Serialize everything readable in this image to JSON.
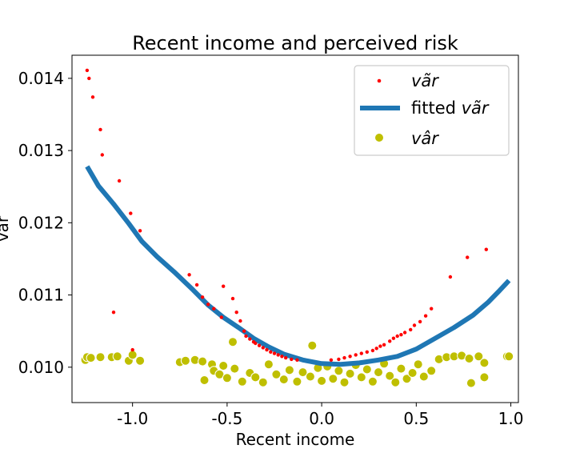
{
  "chart_data": {
    "type": "scatter",
    "title": "Recent income and perceived risk",
    "xlabel": "Recent income",
    "ylabel": "var",
    "xlim": [
      -1.32,
      1.04
    ],
    "ylim": [
      0.00951,
      0.01432
    ],
    "xticks": [
      -1.0,
      -0.5,
      0.0,
      0.5,
      1.0
    ],
    "xtick_labels": [
      "-1.0",
      "-0.5",
      "0.0",
      "0.5",
      "1.0"
    ],
    "yticks": [
      0.01,
      0.011,
      0.012,
      0.013,
      0.014
    ],
    "ytick_labels": [
      "0.010",
      "0.011",
      "0.012",
      "0.013",
      "0.014"
    ],
    "grid": false,
    "legend_position": "top-right",
    "series": [
      {
        "name": "vãr",
        "kind": "scatter-small",
        "color": "#ff0000",
        "points": [
          [
            -1.24,
            0.01411
          ],
          [
            -1.23,
            0.014
          ],
          [
            -1.21,
            0.01374
          ],
          [
            -1.17,
            0.01329
          ],
          [
            -1.16,
            0.01294
          ],
          [
            -1.07,
            0.01258
          ],
          [
            -1.01,
            0.01213
          ],
          [
            -0.96,
            0.01189
          ],
          [
            -1.1,
            0.01076
          ],
          [
            -1.0,
            0.01024
          ],
          [
            -0.7,
            0.01128
          ],
          [
            -0.66,
            0.01114
          ],
          [
            -0.63,
            0.01097
          ],
          [
            -0.6,
            0.01087
          ],
          [
            -0.57,
            0.01081
          ],
          [
            -0.53,
            0.01069
          ],
          [
            -0.52,
            0.01112
          ],
          [
            -0.47,
            0.01095
          ],
          [
            -0.45,
            0.01076
          ],
          [
            -0.43,
            0.01064
          ],
          [
            -0.41,
            0.0105
          ],
          [
            -0.4,
            0.01043
          ],
          [
            -0.38,
            0.01039
          ],
          [
            -0.36,
            0.01035
          ],
          [
            -0.35,
            0.01033
          ],
          [
            -0.33,
            0.0103
          ],
          [
            -0.31,
            0.01027
          ],
          [
            -0.29,
            0.01024
          ],
          [
            -0.27,
            0.01021
          ],
          [
            -0.25,
            0.01019
          ],
          [
            -0.23,
            0.01017
          ],
          [
            -0.21,
            0.01015
          ],
          [
            -0.19,
            0.01013
          ],
          [
            -0.16,
            0.01011
          ],
          [
            -0.13,
            0.0101
          ],
          [
            0.05,
            0.0101
          ],
          [
            0.09,
            0.01011
          ],
          [
            0.12,
            0.01013
          ],
          [
            0.15,
            0.01015
          ],
          [
            0.18,
            0.01017
          ],
          [
            0.21,
            0.01019
          ],
          [
            0.24,
            0.01021
          ],
          [
            0.27,
            0.01023
          ],
          [
            0.29,
            0.01026
          ],
          [
            0.31,
            0.01029
          ],
          [
            0.33,
            0.01031
          ],
          [
            0.36,
            0.01036
          ],
          [
            0.38,
            0.0104
          ],
          [
            0.4,
            0.01043
          ],
          [
            0.42,
            0.01045
          ],
          [
            0.44,
            0.01048
          ],
          [
            0.47,
            0.01052
          ],
          [
            0.49,
            0.01058
          ],
          [
            0.52,
            0.01063
          ],
          [
            0.55,
            0.01071
          ],
          [
            0.58,
            0.01081
          ],
          [
            0.68,
            0.01125
          ],
          [
            0.77,
            0.01152
          ],
          [
            0.87,
            0.01163
          ]
        ]
      },
      {
        "name": "fitted vãr",
        "kind": "line",
        "color": "#1f77b4",
        "points": [
          [
            -1.24,
            0.01278
          ],
          [
            -1.18,
            0.01251
          ],
          [
            -1.1,
            0.01226
          ],
          [
            -1.02,
            0.01199
          ],
          [
            -0.95,
            0.01174
          ],
          [
            -0.87,
            0.01153
          ],
          [
            -0.78,
            0.01132
          ],
          [
            -0.68,
            0.01107
          ],
          [
            -0.6,
            0.01086
          ],
          [
            -0.52,
            0.01069
          ],
          [
            -0.44,
            0.01055
          ],
          [
            -0.36,
            0.0104
          ],
          [
            -0.28,
            0.01028
          ],
          [
            -0.2,
            0.01018
          ],
          [
            -0.1,
            0.0101
          ],
          [
            0.0,
            0.01005
          ],
          [
            0.1,
            0.01004
          ],
          [
            0.2,
            0.01006
          ],
          [
            0.3,
            0.0101
          ],
          [
            0.4,
            0.01015
          ],
          [
            0.5,
            0.01025
          ],
          [
            0.6,
            0.0104
          ],
          [
            0.7,
            0.01055
          ],
          [
            0.8,
            0.01072
          ],
          [
            0.88,
            0.0109
          ],
          [
            0.94,
            0.01106
          ],
          [
            0.99,
            0.0112
          ]
        ]
      },
      {
        "name": "vâr",
        "kind": "scatter-large",
        "color": "#bfbf00",
        "points": [
          [
            -1.25,
            0.0101
          ],
          [
            -1.24,
            0.01014
          ],
          [
            -1.22,
            0.01013
          ],
          [
            -1.17,
            0.01014
          ],
          [
            -1.11,
            0.01014
          ],
          [
            -1.08,
            0.01015
          ],
          [
            -1.02,
            0.01009
          ],
          [
            -1.0,
            0.01017
          ],
          [
            -0.96,
            0.01009
          ],
          [
            -0.75,
            0.01007
          ],
          [
            -0.72,
            0.01009
          ],
          [
            -0.67,
            0.0101
          ],
          [
            -0.63,
            0.01008
          ],
          [
            -0.58,
            0.01004
          ],
          [
            -0.52,
            0.01002
          ],
          [
            -0.47,
            0.01035
          ],
          [
            -0.62,
            0.00982
          ],
          [
            -0.57,
            0.00995
          ],
          [
            -0.54,
            0.0099
          ],
          [
            -0.5,
            0.00985
          ],
          [
            -0.46,
            0.00998
          ],
          [
            -0.42,
            0.0098
          ],
          [
            -0.38,
            0.00992
          ],
          [
            -0.35,
            0.00986
          ],
          [
            -0.31,
            0.00979
          ],
          [
            -0.28,
            0.01004
          ],
          [
            -0.24,
            0.0099
          ],
          [
            -0.2,
            0.00983
          ],
          [
            -0.17,
            0.00996
          ],
          [
            -0.13,
            0.0098
          ],
          [
            -0.1,
            0.00993
          ],
          [
            -0.06,
            0.00987
          ],
          [
            -0.02,
            0.00999
          ],
          [
            0.0,
            0.00981
          ],
          [
            0.03,
            0.01001
          ],
          [
            0.06,
            0.00984
          ],
          [
            0.09,
            0.00995
          ],
          [
            0.12,
            0.00979
          ],
          [
            0.15,
            0.00991
          ],
          [
            0.18,
            0.01003
          ],
          [
            0.21,
            0.00986
          ],
          [
            0.24,
            0.00997
          ],
          [
            0.27,
            0.0098
          ],
          [
            0.3,
            0.00993
          ],
          [
            0.33,
            0.01005
          ],
          [
            0.36,
            0.00988
          ],
          [
            0.39,
            0.00979
          ],
          [
            0.42,
            0.00998
          ],
          [
            0.45,
            0.00984
          ],
          [
            0.48,
            0.00992
          ],
          [
            0.51,
            0.01004
          ],
          [
            0.54,
            0.00987
          ],
          [
            0.58,
            0.00995
          ],
          [
            0.62,
            0.01011
          ],
          [
            0.66,
            0.01014
          ],
          [
            0.7,
            0.01015
          ],
          [
            0.74,
            0.01016
          ],
          [
            0.78,
            0.01012
          ],
          [
            0.83,
            0.01015
          ],
          [
            0.86,
            0.01006
          ],
          [
            0.86,
            0.00986
          ],
          [
            0.79,
            0.00978
          ],
          [
            0.98,
            0.01015
          ],
          [
            0.99,
            0.01015
          ],
          [
            -0.05,
            0.0103
          ]
        ]
      }
    ]
  },
  "legend": {
    "items": [
      {
        "label": "vãr",
        "style": "italic"
      },
      {
        "label": "fitted ",
        "label_italic": "vãr"
      },
      {
        "label": "vâr",
        "style": "italic"
      }
    ]
  }
}
